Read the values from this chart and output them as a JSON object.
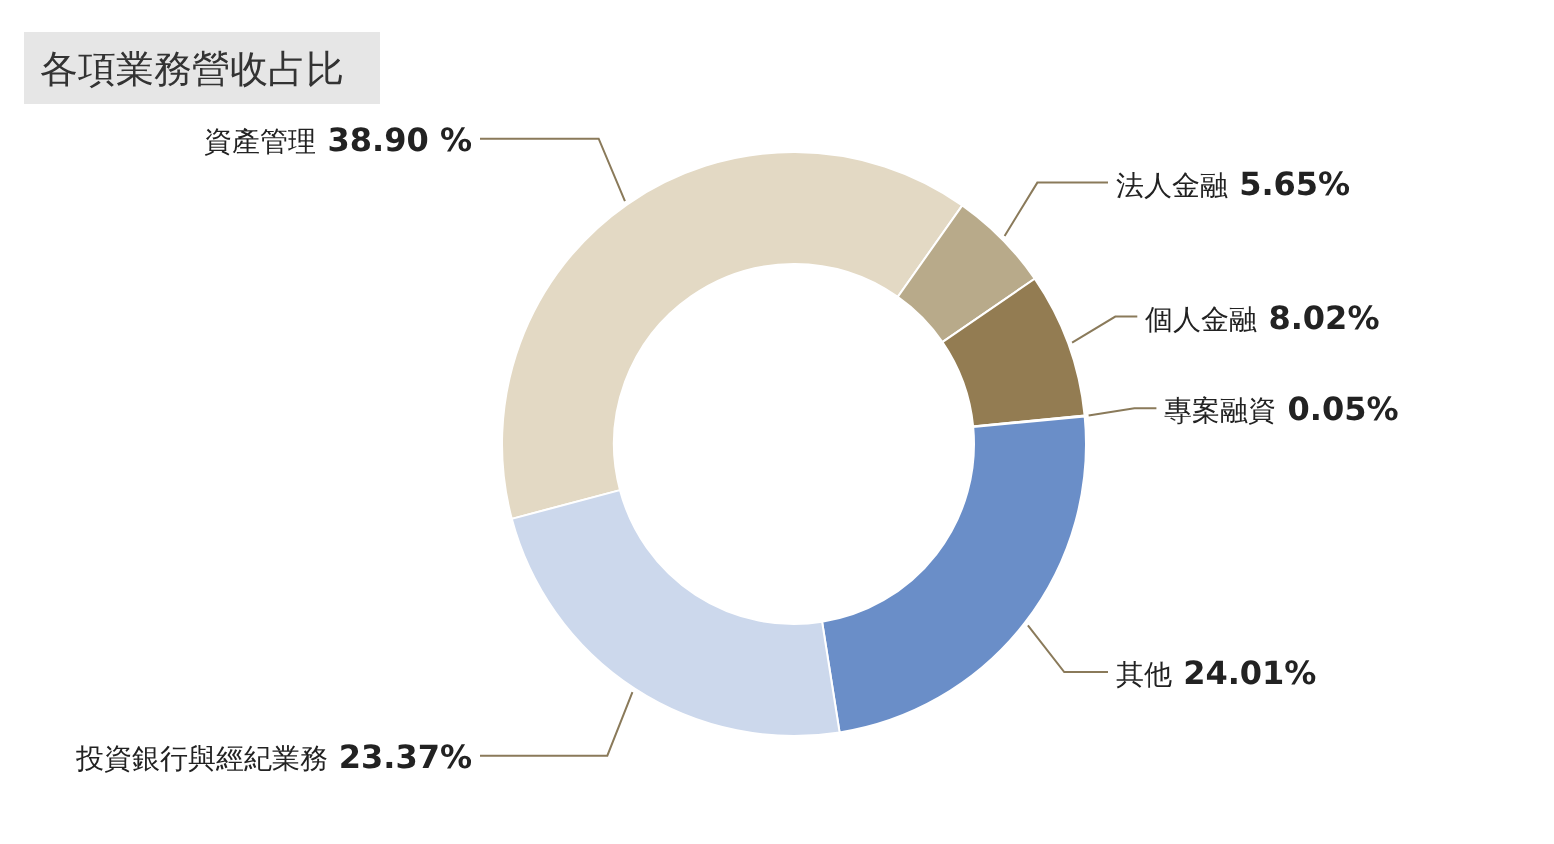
{
  "chart_data": {
    "type": "donut",
    "title": "各項業務營收占比",
    "categories": [
      "資產管理",
      "法人金融",
      "個人金融",
      "專案融資",
      "其他",
      "投資銀行與經紀業務"
    ],
    "values": [
      38.9,
      5.65,
      8.02,
      0.05,
      24.01,
      23.37
    ],
    "colors": [
      "#e3d9c4",
      "#b8aa8a",
      "#937c52",
      "#8fa8d8",
      "#6a8ec8",
      "#ccd8ec"
    ],
    "value_labels": [
      "38.90 %",
      "5.65%",
      "8.02%",
      "0.05%",
      "24.01%",
      "23.37%"
    ]
  }
}
